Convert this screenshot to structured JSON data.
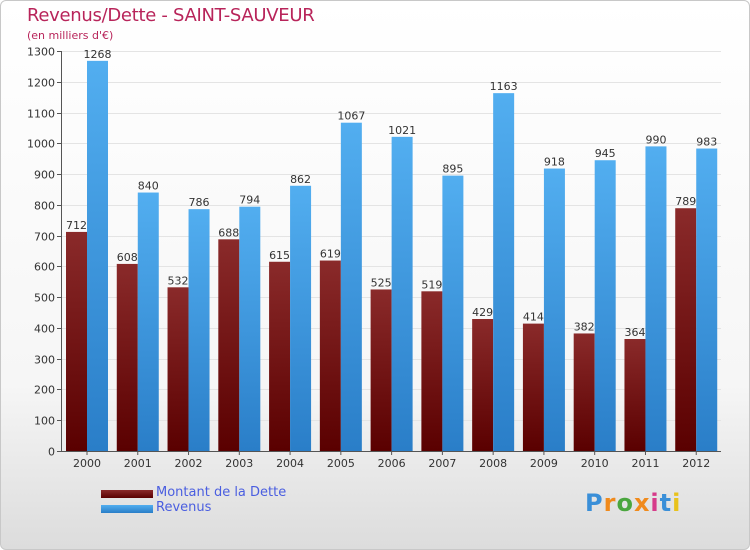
{
  "title": "Revenus/Dette - SAINT-SAUVEUR",
  "subtitle": "(en milliers d'€)",
  "logo": {
    "text": "Proxiti",
    "colors": [
      "#3a8fd8",
      "#f08a1c",
      "#4aa63e",
      "#f08a1c",
      "#d63b8a",
      "#3a8fd8",
      "#e8c21c"
    ]
  },
  "colors": {
    "dette": "#7a1010",
    "revenus": "#3a96e0",
    "axis": "#555555",
    "grid": "#e4e4e4"
  },
  "chart_data": {
    "type": "bar",
    "title": "Revenus/Dette - SAINT-SAUVEUR",
    "ylabel": "(en milliers d'€)",
    "categories": [
      "2000",
      "2001",
      "2002",
      "2003",
      "2004",
      "2005",
      "2006",
      "2007",
      "2008",
      "2009",
      "2010",
      "2011",
      "2012"
    ],
    "series": [
      {
        "name": "Montant de la Dette",
        "values": [
          712,
          608,
          532,
          688,
          615,
          619,
          525,
          519,
          429,
          414,
          382,
          364,
          789
        ]
      },
      {
        "name": "Revenus",
        "values": [
          1268,
          840,
          786,
          794,
          862,
          1067,
          1021,
          895,
          1163,
          918,
          945,
          990,
          983
        ]
      }
    ],
    "ylim": [
      0,
      1300
    ],
    "yticks": [
      0,
      100,
      200,
      300,
      400,
      500,
      600,
      700,
      800,
      900,
      1000,
      1100,
      1200,
      1300
    ],
    "legend": "bottom-left"
  }
}
